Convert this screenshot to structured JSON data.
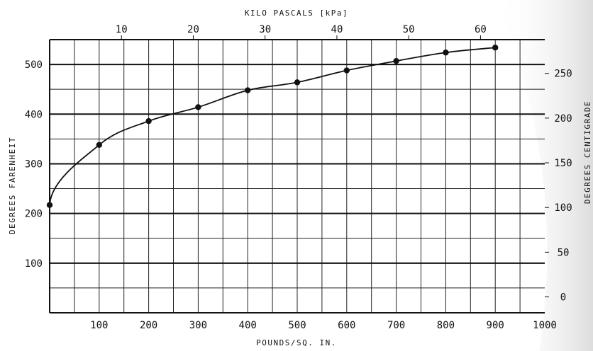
{
  "chart_data": {
    "type": "line",
    "xlabel": "POUNDS/SQ. IN.",
    "x2label": "KILO PASCALS [kPa]",
    "ylabel": "DEGREES FARENHEIT",
    "y2label": "DEGREES CENTIGRADE",
    "xlim": [
      0,
      1000
    ],
    "ylim": [
      0,
      550
    ],
    "x_ticks": [
      "100",
      "200",
      "300",
      "400",
      "500",
      "600",
      "700",
      "800",
      "900",
      "1000"
    ],
    "y_ticks": [
      "100",
      "200",
      "300",
      "400",
      "500"
    ],
    "x2_ticks": [
      "10",
      "20",
      "30",
      "40",
      "50",
      "60"
    ],
    "y2_ticks": [
      "0",
      "50",
      "100",
      "150",
      "200",
      "250"
    ],
    "grid": true,
    "series": [
      {
        "x": [
          0,
          100,
          200,
          300,
          400,
          500,
          600,
          700,
          800,
          900
        ],
        "values": [
          217,
          338,
          386,
          414,
          448,
          464,
          488,
          507,
          524,
          534
        ]
      }
    ],
    "colors": {
      "ink": "#111111",
      "background": "#ffffff",
      "shade": "#e9e9e9"
    }
  }
}
